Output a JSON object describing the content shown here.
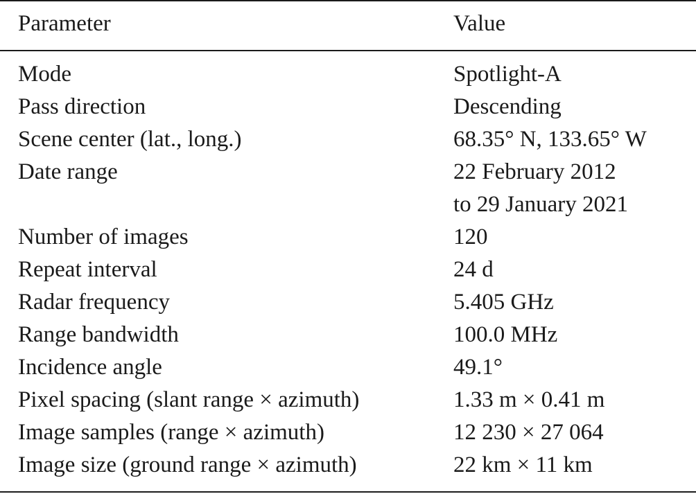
{
  "table": {
    "headers": {
      "parameter": "Parameter",
      "value": "Value"
    },
    "rows": [
      {
        "parameter": "Mode",
        "value": "Spotlight-A"
      },
      {
        "parameter": "Pass direction",
        "value": "Descending"
      },
      {
        "parameter": "Scene center (lat., long.)",
        "value": "68.35° N, 133.65° W"
      },
      {
        "parameter": "Date range",
        "value": "22 February 2012"
      },
      {
        "parameter": "",
        "value": "to 29 January 2021"
      },
      {
        "parameter": "Number of images",
        "value": "120"
      },
      {
        "parameter": "Repeat interval",
        "value": "24 d"
      },
      {
        "parameter": "Radar frequency",
        "value": "5.405 GHz"
      },
      {
        "parameter": "Range bandwidth",
        "value": "100.0 MHz"
      },
      {
        "parameter": "Incidence angle",
        "value": "49.1°"
      },
      {
        "parameter": "Pixel spacing (slant range × azimuth)",
        "value": "1.33 m × 0.41 m"
      },
      {
        "parameter": "Image samples (range × azimuth)",
        "value": "12 230 × 27 064"
      },
      {
        "parameter": "Image size (ground range × azimuth)",
        "value": "22 km × 11 km"
      }
    ]
  }
}
